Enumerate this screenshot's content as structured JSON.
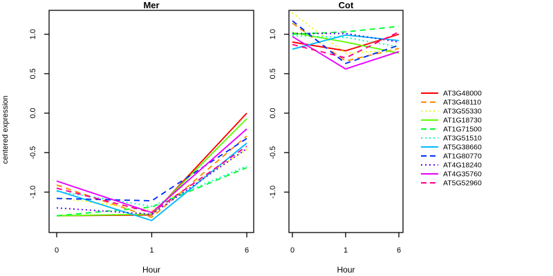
{
  "ylabel": "centered expression",
  "xlabel": "Hour",
  "y_tick_labels": [
    "1.0",
    "0.5",
    "0.0",
    "-0.5",
    "-1.0"
  ],
  "y_tick_values": [
    1.0,
    0.5,
    0.0,
    -0.5,
    -1.0
  ],
  "legend": {
    "position": "right",
    "entries": [
      {
        "label": "AT3G48000",
        "color": "#FF0000",
        "linestyle": "solid"
      },
      {
        "label": "AT3G48110",
        "color": "#FF8B00",
        "linestyle": "dashed"
      },
      {
        "label": "AT3G55330",
        "color": "#E8FF00",
        "linestyle": "dotted"
      },
      {
        "label": "AT1G18730",
        "color": "#5DFF00",
        "linestyle": "solid"
      },
      {
        "label": "AT1G71500",
        "color": "#00FF2E",
        "linestyle": "dashed"
      },
      {
        "label": "AT3G51510",
        "color": "#00FFB9",
        "linestyle": "dotted"
      },
      {
        "label": "AT5G38660",
        "color": "#00B9FF",
        "linestyle": "solid"
      },
      {
        "label": "AT1G80770",
        "color": "#002EFF",
        "linestyle": "dashed"
      },
      {
        "label": "AT4G18240",
        "color": "#5D00FF",
        "linestyle": "dotted"
      },
      {
        "label": "AT4G35760",
        "color": "#E800FF",
        "linestyle": "solid"
      },
      {
        "label": "AT5G52960",
        "color": "#FF008B",
        "linestyle": "dashed"
      }
    ]
  },
  "chart_data": [
    {
      "type": "line",
      "title": "Mer",
      "xlabel": "Hour",
      "ylabel": "centered expression",
      "x_labels": [
        "0",
        "1",
        "6"
      ],
      "ylim": [
        -1.51,
        1.3
      ],
      "grid": false,
      "series": [
        {
          "name": "AT3G48000",
          "color": "#FF0000",
          "linestyle": "solid",
          "values": [
            -1.3,
            -1.29,
            0.0
          ]
        },
        {
          "name": "AT3G48110",
          "color": "#FF8B00",
          "linestyle": "dashed",
          "values": [
            -0.91,
            -1.32,
            -0.29
          ]
        },
        {
          "name": "AT3G55330",
          "color": "#E8FF00",
          "linestyle": "dotted",
          "values": [
            -1.07,
            -1.23,
            -0.46
          ]
        },
        {
          "name": "AT1G18730",
          "color": "#5DFF00",
          "linestyle": "solid",
          "values": [
            -1.3,
            -1.28,
            -0.07
          ]
        },
        {
          "name": "AT1G71500",
          "color": "#00FF2E",
          "linestyle": "dashed",
          "values": [
            -1.3,
            -1.19,
            -0.69
          ]
        },
        {
          "name": "AT3G51510",
          "color": "#00FFB9",
          "linestyle": "dotted",
          "values": [
            -0.99,
            -1.18,
            -0.67
          ]
        },
        {
          "name": "AT5G38660",
          "color": "#00B9FF",
          "linestyle": "solid",
          "values": [
            -0.98,
            -1.36,
            -0.38
          ]
        },
        {
          "name": "AT1G80770",
          "color": "#002EFF",
          "linestyle": "dashed",
          "values": [
            -1.08,
            -1.11,
            -0.32
          ]
        },
        {
          "name": "AT4G18240",
          "color": "#5D00FF",
          "linestyle": "dotted",
          "values": [
            -1.2,
            -1.28,
            -0.45
          ]
        },
        {
          "name": "AT4G35760",
          "color": "#E800FF",
          "linestyle": "solid",
          "values": [
            -0.86,
            -1.26,
            -0.2
          ]
        },
        {
          "name": "AT5G52960",
          "color": "#FF008B",
          "linestyle": "dashed",
          "values": [
            -0.95,
            -1.26,
            -0.42
          ]
        }
      ]
    },
    {
      "type": "line",
      "title": "Cot",
      "xlabel": "Hour",
      "ylabel": "centered expression",
      "x_labels": [
        "0",
        "1",
        "6"
      ],
      "ylim": [
        -1.51,
        1.3
      ],
      "grid": false,
      "series": [
        {
          "name": "AT3G48000",
          "color": "#FF0000",
          "linestyle": "solid",
          "values": [
            0.9,
            0.79,
            1.0
          ]
        },
        {
          "name": "AT3G48110",
          "color": "#FF8B00",
          "linestyle": "dashed",
          "values": [
            1.14,
            0.66,
            0.82
          ]
        },
        {
          "name": "AT3G55330",
          "color": "#E8FF00",
          "linestyle": "dotted",
          "values": [
            1.27,
            0.76,
            0.8
          ]
        },
        {
          "name": "AT1G18730",
          "color": "#5DFF00",
          "linestyle": "solid",
          "values": [
            1.02,
            0.9,
            0.76
          ]
        },
        {
          "name": "AT1G71500",
          "color": "#00FF2E",
          "linestyle": "dashed",
          "values": [
            1.0,
            1.03,
            1.1
          ]
        },
        {
          "name": "AT3G51510",
          "color": "#00FFB9",
          "linestyle": "dotted",
          "values": [
            0.98,
            0.96,
            0.84
          ]
        },
        {
          "name": "AT5G38660",
          "color": "#00B9FF",
          "linestyle": "solid",
          "values": [
            0.81,
            0.99,
            0.92
          ]
        },
        {
          "name": "AT1G80770",
          "color": "#002EFF",
          "linestyle": "dashed",
          "values": [
            1.17,
            0.63,
            0.86
          ]
        },
        {
          "name": "AT4G18240",
          "color": "#5D00FF",
          "linestyle": "dotted",
          "values": [
            1.01,
            1.01,
            0.9
          ]
        },
        {
          "name": "AT4G35760",
          "color": "#E800FF",
          "linestyle": "solid",
          "values": [
            0.97,
            0.56,
            0.78
          ]
        },
        {
          "name": "AT5G52960",
          "color": "#FF008B",
          "linestyle": "dashed",
          "values": [
            0.87,
            0.7,
            1.03
          ]
        }
      ]
    }
  ]
}
